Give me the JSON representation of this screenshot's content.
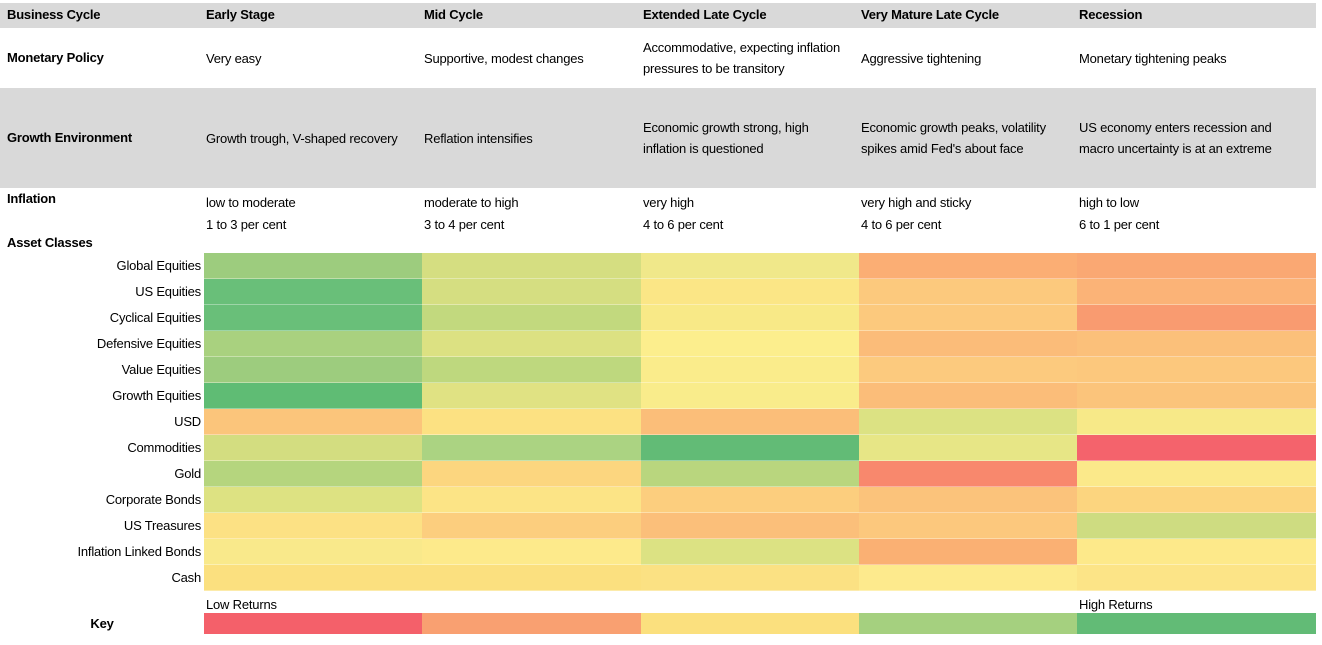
{
  "header": {
    "row_label": "Business Cycle",
    "columns": [
      "Early Stage",
      "Mid Cycle",
      "Extended Late Cycle",
      "Very Mature Late Cycle",
      "Recession"
    ]
  },
  "monetary_policy": {
    "label": "Monetary Policy",
    "cells": [
      "Very easy",
      "Supportive, modest changes",
      "Accommodative, expecting inflation pressures to be transitory",
      "Aggressive tightening",
      "Monetary tightening peaks"
    ]
  },
  "growth_environment": {
    "label": "Growth Environment",
    "cells": [
      "Growth trough, V-shaped recovery",
      "Reflation intensifies",
      "Economic growth strong, high inflation is questioned",
      "Economic growth peaks, volatility spikes amid Fed's about face",
      "US economy enters recession and macro uncertainty is at an extreme"
    ]
  },
  "inflation": {
    "label": "Inflation",
    "cells": [
      [
        "low to moderate",
        "1 to 3 per cent"
      ],
      [
        "moderate to high",
        "3 to 4 per cent"
      ],
      [
        "very high",
        "4 to 6 per cent"
      ],
      [
        "very high and sticky",
        "4 to 6 per cent"
      ],
      [
        "high to low",
        "6 to 1 per cent"
      ]
    ]
  },
  "asset_section_label": "Asset Classes",
  "chart_data": {
    "type": "heatmap",
    "title": "Business Cycle stages vs asset class expected returns",
    "columns": [
      "Early Stage",
      "Mid Cycle",
      "Extended Late Cycle",
      "Very Mature Late Cycle",
      "Recession"
    ],
    "rows": [
      "Global Equities",
      "US Equities",
      "Cyclical Equities",
      "Defensive Equities",
      "Value Equities",
      "Growth Equities",
      "USD",
      "Commodities",
      "Gold",
      "Corporate Bonds",
      "US Treasures",
      "Inflation Linked Bonds",
      "Cash"
    ],
    "value_scale": "qualitative color scale from Low Returns (red) to High Returns (green)",
    "cell_colors": [
      [
        "#9dcc7e",
        "#d5de81",
        "#f0e88a",
        "#fbae74",
        "#faa873"
      ],
      [
        "#69bf79",
        "#d5de81",
        "#fbe686",
        "#fcc97d",
        "#fbb377"
      ],
      [
        "#69bf79",
        "#c2d97e",
        "#f8e987",
        "#fcc97d",
        "#f99b70"
      ],
      [
        "#a9d17f",
        "#dce182",
        "#fcee8d",
        "#fbbc79",
        "#fbc07a"
      ],
      [
        "#9dcc7e",
        "#bed87e",
        "#faec8b",
        "#fcca7e",
        "#fcc87d"
      ],
      [
        "#5fbc74",
        "#e0e283",
        "#f9ec8b",
        "#fbbd79",
        "#fbc47b"
      ],
      [
        "#fbc57b",
        "#fce182",
        "#fbbe79",
        "#dce283",
        "#f7e988"
      ],
      [
        "#d3dd80",
        "#abd382",
        "#62bb76",
        "#e7e686",
        "#f4636c"
      ],
      [
        "#b5d57e",
        "#fcd67f",
        "#b9d67e",
        "#f8886d",
        "#fbe98a"
      ],
      [
        "#dde282",
        "#fce486",
        "#fcce7e",
        "#fbc37b",
        "#fcd57f"
      ],
      [
        "#fce184",
        "#fcce7e",
        "#fbbf7a",
        "#fcc87d",
        "#cedc81"
      ],
      [
        "#f9e98b",
        "#fdea8b",
        "#dce283",
        "#fab073",
        "#fde98a"
      ],
      [
        "#fbe07f",
        "#fbe07f",
        "#fbe183",
        "#fdea8d",
        "#fce487"
      ]
    ],
    "legend": {
      "low_label": "Low Returns",
      "high_label": "High Returns",
      "gradient_colors": [
        "#f4606a",
        "#f9a071",
        "#fbe07e",
        "#a5d07f",
        "#62bb76"
      ]
    }
  },
  "key": {
    "label": "Key",
    "low_label": "Low Returns",
    "high_label": "High Returns",
    "colors": [
      "#f4606a",
      "#f9a071",
      "#fbe07e",
      "#a5d07f",
      "#62bb76"
    ]
  },
  "colors": {
    "band_gray": "#d9d9d9",
    "text": "#000000",
    "background": "#ffffff"
  }
}
